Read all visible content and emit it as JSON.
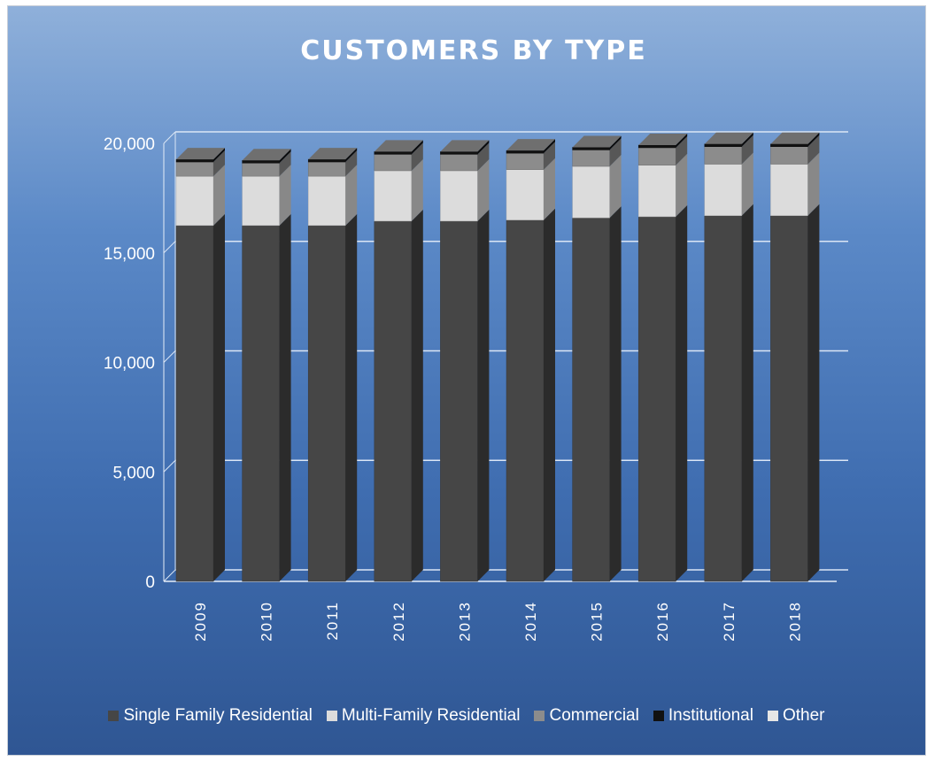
{
  "chart_data": {
    "type": "bar",
    "stacked": true,
    "style": "3d",
    "title": "CUSTOMERS BY TYPE",
    "xlabel": "",
    "ylabel": "",
    "categories": [
      "2009",
      "2010",
      "2011",
      "2012",
      "2013",
      "2014",
      "2015",
      "2016",
      "2017",
      "2018"
    ],
    "ylim": [
      0,
      20000
    ],
    "yticks": [
      0,
      5000,
      10000,
      15000,
      20000
    ],
    "ytick_labels": [
      "0",
      "5,000",
      "10,000",
      "15,000",
      "20,000"
    ],
    "grid": true,
    "legend_position": "bottom",
    "series": [
      {
        "name": "Single Family Residential",
        "color": "#464646",
        "values": [
          16250,
          16250,
          16250,
          16450,
          16450,
          16500,
          16600,
          16650,
          16700,
          16700
        ]
      },
      {
        "name": "Multi-Family Residential",
        "color": "#dcdcdc",
        "values": [
          2250,
          2250,
          2250,
          2300,
          2300,
          2300,
          2350,
          2350,
          2350,
          2350
        ]
      },
      {
        "name": "Commercial",
        "color": "#8c8c8c",
        "values": [
          650,
          600,
          650,
          750,
          750,
          750,
          750,
          800,
          800,
          800
        ]
      },
      {
        "name": "Institutional",
        "color": "#111111",
        "values": [
          120,
          120,
          120,
          120,
          120,
          120,
          120,
          120,
          120,
          120
        ]
      },
      {
        "name": "Other",
        "color": "#e6e6e6",
        "values": [
          0,
          0,
          0,
          0,
          0,
          0,
          0,
          0,
          0,
          0
        ]
      }
    ],
    "background_colors": {
      "top": "#8fb0da",
      "bottom": "#2f5693"
    },
    "grid_color": "#dbe6f5",
    "text_color": "#ffffff"
  }
}
